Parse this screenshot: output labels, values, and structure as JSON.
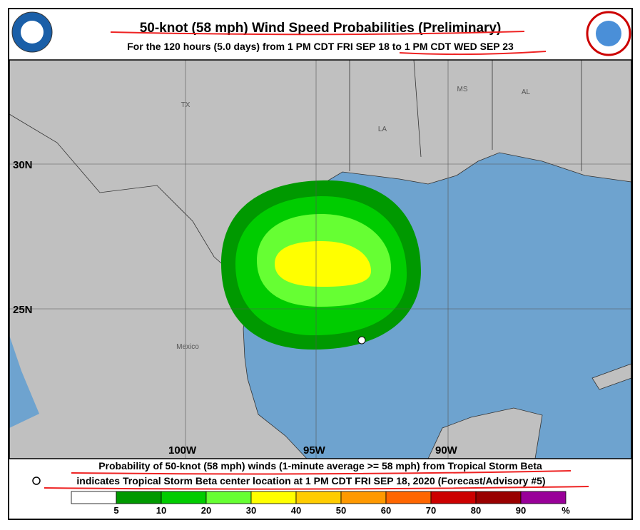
{
  "header": {
    "title": "50-knot (58 mph) Wind Speed Probabilities (Preliminary)",
    "subtitle": "For the 120 hours (5.0 days) from 1 PM CDT FRI SEP 18 to 1 PM CDT WED SEP 23"
  },
  "map": {
    "regions": [
      "TX",
      "LA",
      "MS",
      "AL",
      "Mexico"
    ],
    "latitudes": [
      "30N",
      "25N"
    ],
    "longitudes": [
      "100W",
      "95W",
      "90W"
    ]
  },
  "footer": {
    "line1": "Probability of 50-knot (58 mph) winds (1-minute average >= 58 mph) from Tropical Storm Beta",
    "line2": "indicates Tropical Storm Beta center location at 1 PM CDT FRI SEP 18, 2020 (Forecast/Advisory #5)"
  },
  "legend": {
    "ticks": [
      5,
      10,
      20,
      30,
      40,
      50,
      60,
      70,
      80,
      90
    ],
    "unit": "%",
    "colors": [
      "#ffffff",
      "#009900",
      "#00cc00",
      "#66ff33",
      "#ffff00",
      "#ffcc00",
      "#ff9900",
      "#ff6600",
      "#cc0000",
      "#990000",
      "#990099"
    ]
  }
}
